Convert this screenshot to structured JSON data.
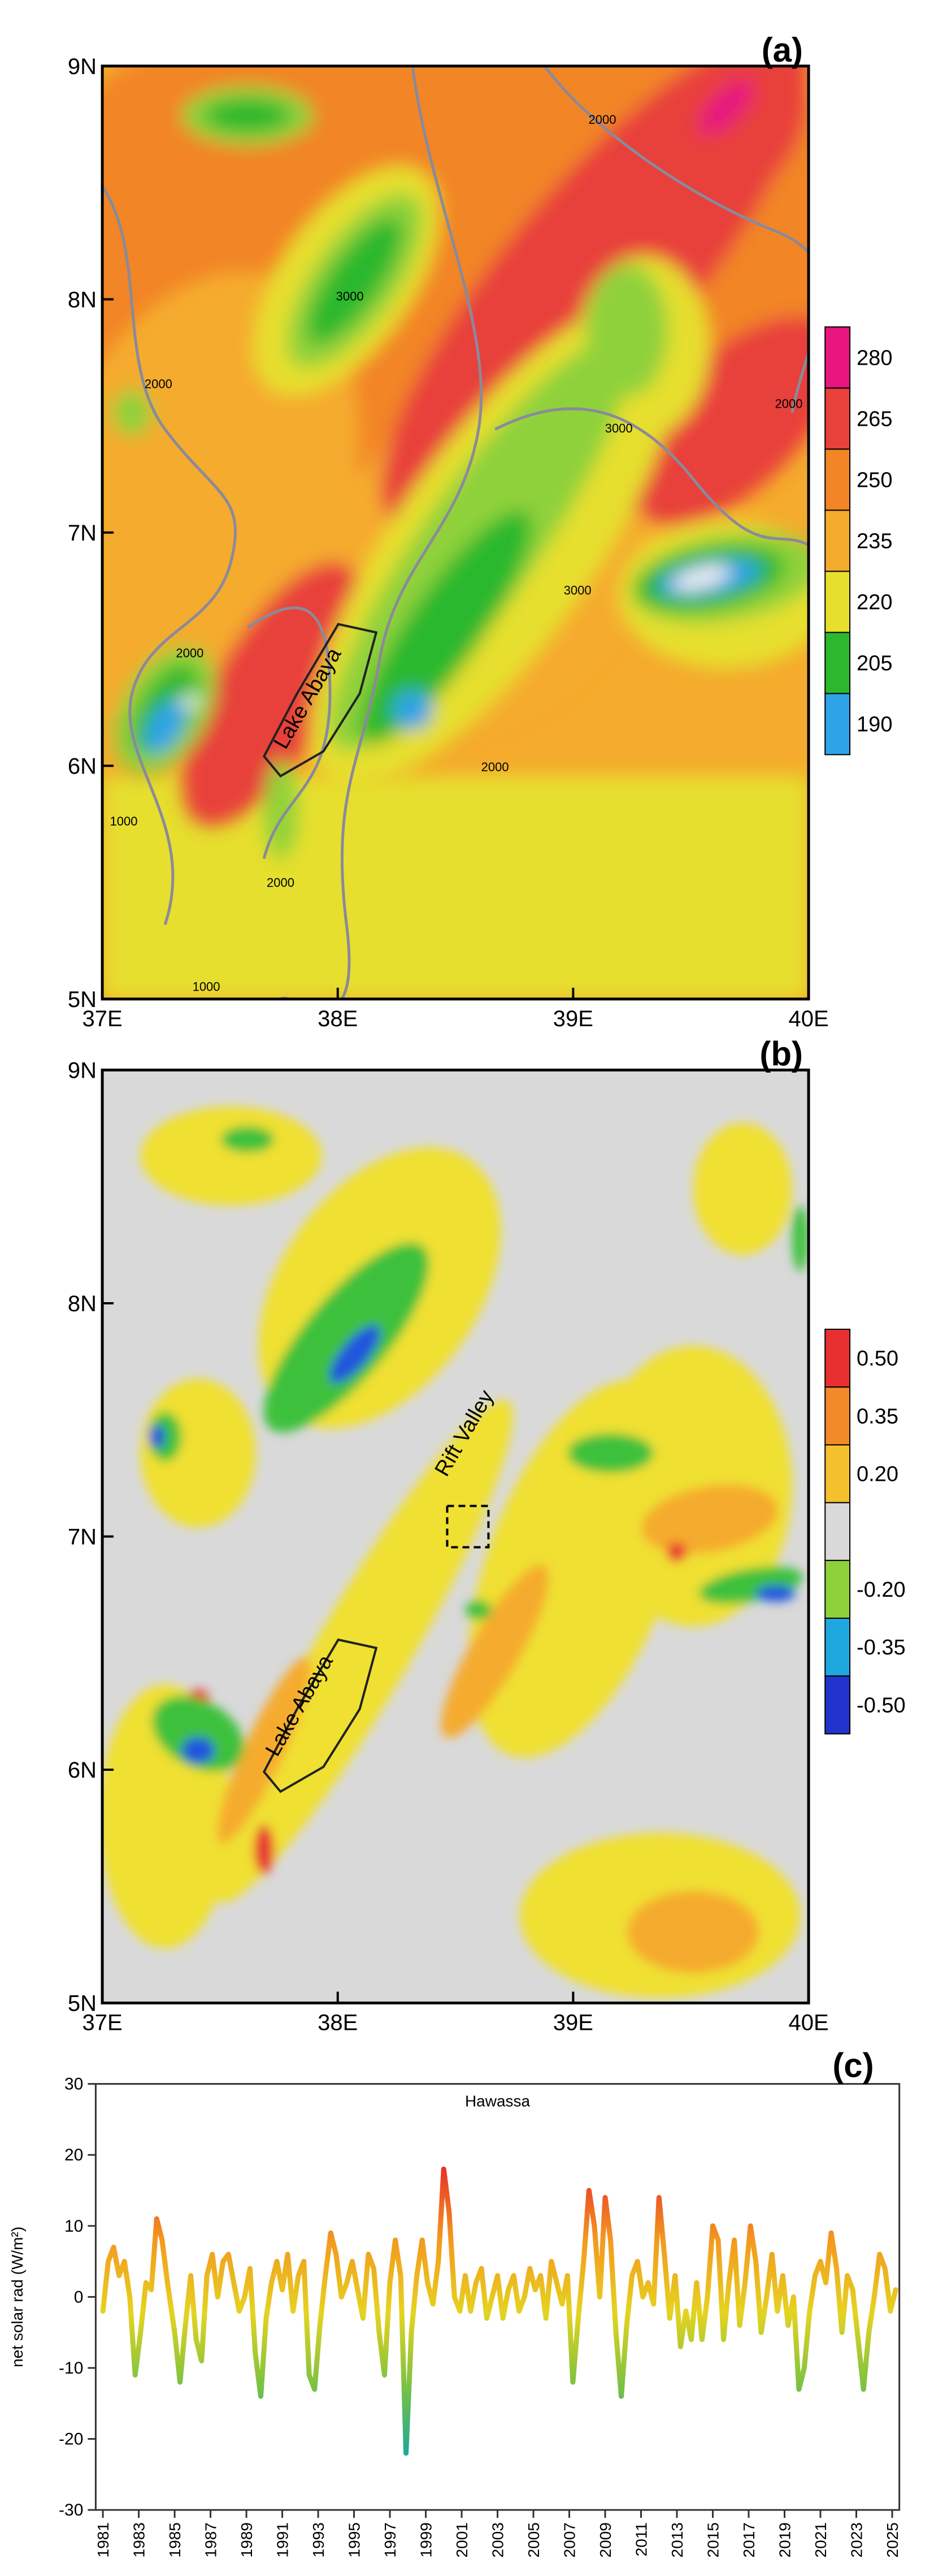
{
  "chart_data": [
    {
      "type": "map",
      "panel_label": "(a)",
      "xlim": [
        37,
        40
      ],
      "ylim": [
        5,
        9
      ],
      "xticks": [
        {
          "value": 37,
          "label": "37E"
        },
        {
          "value": 38,
          "label": "38E"
        },
        {
          "value": 39,
          "label": "39E"
        },
        {
          "value": 40,
          "label": "40E"
        }
      ],
      "yticks": [
        {
          "value": 5,
          "label": "5N"
        },
        {
          "value": 6,
          "label": "6N"
        },
        {
          "value": 7,
          "label": "7N"
        },
        {
          "value": 8,
          "label": "8N"
        },
        {
          "value": 9,
          "label": "9N"
        }
      ],
      "colorbar": {
        "ticks": [
          280,
          265,
          250,
          235,
          220,
          205,
          190
        ],
        "colors": [
          "#e8157e",
          "#e8403a",
          "#f28526",
          "#f5ab2d",
          "#e6df2e",
          "#2bb82e",
          "#2ea3e8"
        ]
      },
      "annotations": [
        "2000",
        "3000",
        "2000",
        "2000",
        "3000",
        "3000",
        "2000",
        "2000",
        "1000",
        "2000",
        "1000",
        "Lake Abaya"
      ]
    },
    {
      "type": "map",
      "panel_label": "(b)",
      "xlim": [
        37,
        40
      ],
      "ylim": [
        5,
        9
      ],
      "xticks": [
        {
          "value": 37,
          "label": "37E"
        },
        {
          "value": 38,
          "label": "38E"
        },
        {
          "value": 39,
          "label": "39E"
        },
        {
          "value": 40,
          "label": "40E"
        }
      ],
      "yticks": [
        {
          "value": 5,
          "label": "5N"
        },
        {
          "value": 6,
          "label": "6N"
        },
        {
          "value": 7,
          "label": "7N"
        },
        {
          "value": 8,
          "label": "8N"
        },
        {
          "value": 9,
          "label": "9N"
        }
      ],
      "colorbar": {
        "ticks": [
          {
            "value": 0.5,
            "label": "0.50"
          },
          {
            "value": 0.35,
            "label": "0.35"
          },
          {
            "value": 0.2,
            "label": "0.20"
          },
          null,
          {
            "value": -0.2,
            "label": "-0.20"
          },
          {
            "value": -0.35,
            "label": "-0.35"
          },
          {
            "value": -0.5,
            "label": "-0.50"
          }
        ],
        "colors": [
          "#e83030",
          "#f28a2a",
          "#f5c02e",
          "#d9d9d9",
          "#8fd13a",
          "#1fa8e0",
          "#2233cc"
        ]
      },
      "annotations": [
        "Rift Valley",
        "Lake Abaya"
      ]
    },
    {
      "type": "line",
      "panel_label": "(c)",
      "title": "Hawassa",
      "y_label": "net solar rad (W/m²)",
      "xlim": [
        1980.6,
        2025.4
      ],
      "ylim": [
        -30,
        30
      ],
      "xticks": [
        1981,
        1983,
        1985,
        1987,
        1989,
        1991,
        1993,
        1995,
        1997,
        1999,
        2001,
        2003,
        2005,
        2007,
        2009,
        2011,
        2013,
        2015,
        2017,
        2019,
        2021,
        2023,
        2025
      ],
      "yticks": [
        -30,
        -20,
        -10,
        0,
        10,
        20,
        30
      ],
      "x": [
        1981.0,
        1981.3,
        1981.6,
        1981.9,
        1982.2,
        1982.5,
        1982.8,
        1983.1,
        1983.4,
        1983.7,
        1984.0,
        1984.3,
        1984.6,
        1985.0,
        1985.3,
        1985.6,
        1985.9,
        1986.2,
        1986.5,
        1986.8,
        1987.1,
        1987.4,
        1987.7,
        1988.0,
        1988.3,
        1988.6,
        1988.9,
        1989.2,
        1989.5,
        1989.8,
        1990.1,
        1990.4,
        1990.7,
        1991.0,
        1991.3,
        1991.6,
        1991.9,
        1992.2,
        1992.5,
        1992.8,
        1993.1,
        1993.4,
        1993.7,
        1994.0,
        1994.3,
        1994.6,
        1994.9,
        1995.2,
        1995.5,
        1995.8,
        1996.1,
        1996.4,
        1996.7,
        1997.0,
        1997.3,
        1997.6,
        1997.9,
        1998.2,
        1998.5,
        1998.8,
        1999.1,
        1999.4,
        1999.7,
        2000.0,
        2000.3,
        2000.6,
        2000.9,
        2001.2,
        2001.5,
        2001.8,
        2002.1,
        2002.4,
        2002.7,
        2003.0,
        2003.3,
        2003.6,
        2003.9,
        2004.2,
        2004.5,
        2004.8,
        2005.1,
        2005.4,
        2005.7,
        2006.0,
        2006.3,
        2006.6,
        2006.9,
        2007.2,
        2007.5,
        2007.8,
        2008.1,
        2008.4,
        2008.7,
        2009.0,
        2009.3,
        2009.6,
        2009.9,
        2010.2,
        2010.5,
        2010.8,
        2011.1,
        2011.4,
        2011.7,
        2012.0,
        2012.3,
        2012.6,
        2012.9,
        2013.2,
        2013.5,
        2013.8,
        2014.1,
        2014.4,
        2014.7,
        2015.0,
        2015.3,
        2015.6,
        2015.9,
        2016.2,
        2016.5,
        2016.8,
        2017.1,
        2017.4,
        2017.7,
        2018.0,
        2018.3,
        2018.6,
        2018.9,
        2019.2,
        2019.5,
        2019.8,
        2020.1,
        2020.4,
        2020.7,
        2021.0,
        2021.3,
        2021.6,
        2021.9,
        2022.2,
        2022.5,
        2022.8,
        2023.1,
        2023.4,
        2023.7,
        2024.0,
        2024.3,
        2024.6,
        2024.9,
        2025.2
      ],
      "series": [
        {
          "colors": [
            "#1aa89a",
            "#7cc242",
            "#e5d320",
            "#f39a1f",
            "#e8352a"
          ],
          "values": [
            -2,
            5,
            7,
            3,
            5,
            0,
            -11,
            -5,
            2,
            1,
            11,
            8,
            2,
            -5,
            -12,
            -4,
            3,
            -6,
            -9,
            3,
            6,
            0,
            5,
            6,
            2,
            -2,
            0,
            4,
            -8,
            -14,
            -3,
            2,
            5,
            1,
            6,
            -2,
            3,
            5,
            -11,
            -13,
            -4,
            3,
            9,
            6,
            0,
            2,
            5,
            1,
            -3,
            6,
            4,
            -5,
            -11,
            2,
            8,
            3,
            -22,
            -5,
            3,
            8,
            2,
            -1,
            5,
            18,
            12,
            0,
            -2,
            3,
            -2,
            2,
            4,
            -3,
            0,
            3,
            -3,
            1,
            3,
            -2,
            0,
            4,
            1,
            3,
            -3,
            5,
            2,
            -1,
            3,
            -12,
            -3,
            5,
            15,
            10,
            0,
            14,
            8,
            -5,
            -14,
            -4,
            3,
            5,
            0,
            2,
            -1,
            14,
            6,
            -3,
            3,
            -7,
            -2,
            -6,
            2,
            -6,
            0,
            10,
            8,
            -6,
            2,
            8,
            -4,
            2,
            10,
            5,
            -5,
            0,
            6,
            -2,
            3,
            -4,
            0,
            -13,
            -10,
            -2,
            3,
            5,
            2,
            9,
            4,
            -5,
            3,
            1,
            -6,
            -13,
            -5,
            0,
            6,
            4,
            -2,
            1
          ]
        }
      ]
    }
  ]
}
